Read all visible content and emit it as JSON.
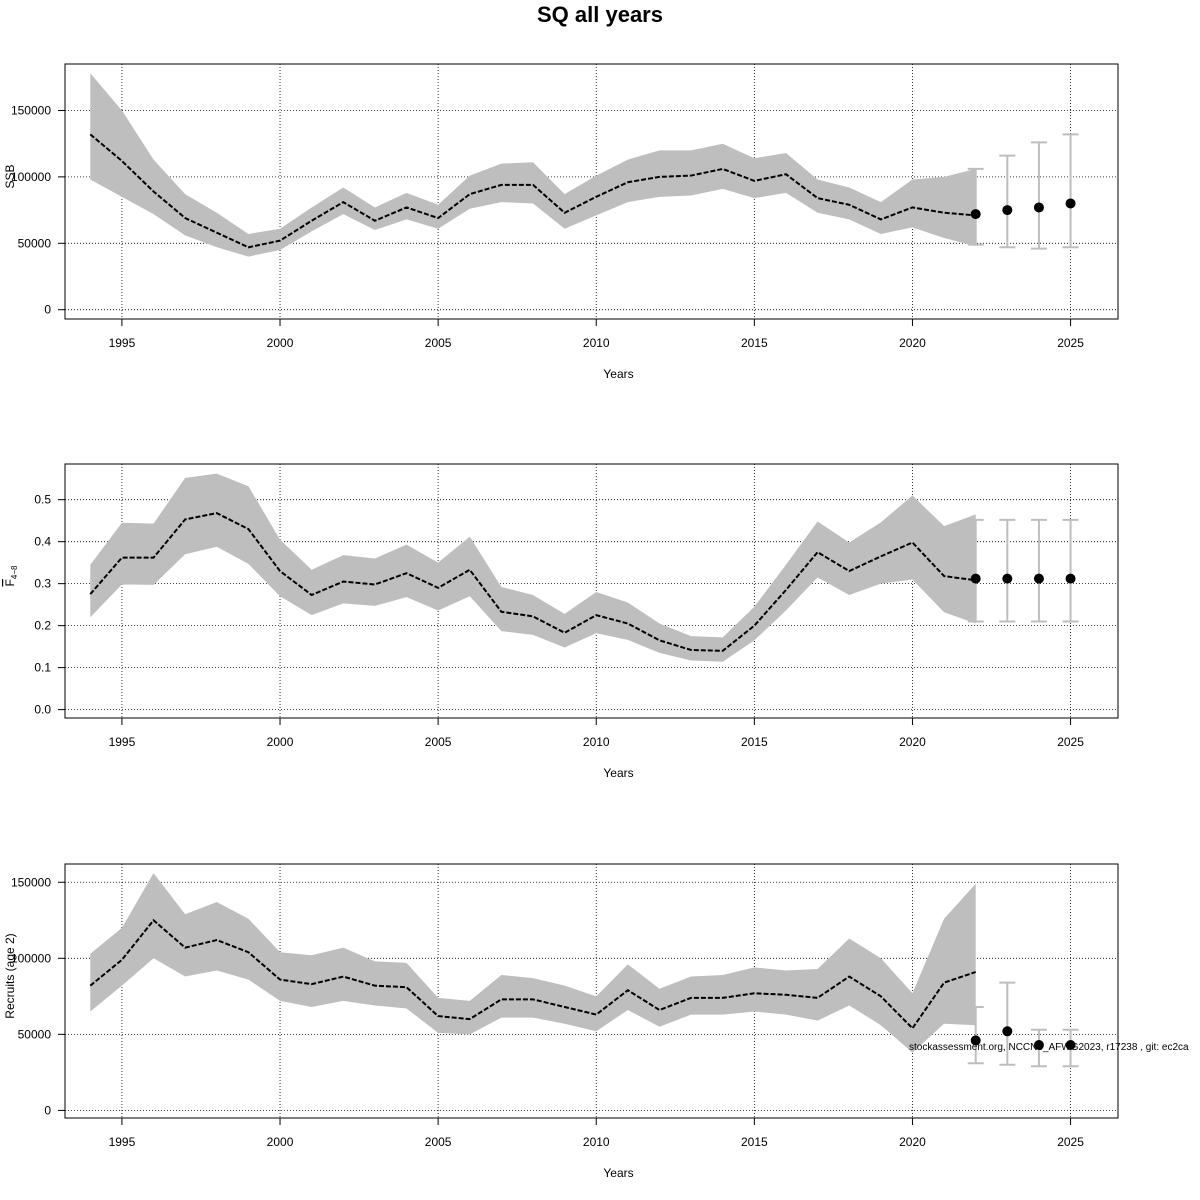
{
  "figure": {
    "title": "SQ all years",
    "footer": "stockassessment.org, NCCN8_AFWG2023, r17238 , git: ec2ca"
  },
  "colors": {
    "line": "#000000",
    "band": "#bebebe",
    "grid": "#000000",
    "errorbar": "#bebebe",
    "point": "#000000"
  },
  "chart_data": [
    {
      "type": "line",
      "name": "ssb",
      "title": "",
      "xlabel": "Years",
      "ylabel": "SSB",
      "xlim": [
        1993.2,
        2026.5
      ],
      "ylim": [
        -7000,
        185000
      ],
      "grid": true,
      "xticks": [
        1995,
        2000,
        2005,
        2010,
        2015,
        2020,
        2025
      ],
      "xtick_labels": [
        "1995",
        "2000",
        "2005",
        "2010",
        "2015",
        "2020",
        "2025"
      ],
      "yticks": [
        0,
        50000,
        100000,
        150000
      ],
      "ytick_labels": [
        "0",
        "50000",
        "100000",
        "150000"
      ],
      "x": [
        1994,
        1995,
        1996,
        1997,
        1998,
        1999,
        2000,
        2001,
        2002,
        2003,
        2004,
        2005,
        2006,
        2007,
        2008,
        2009,
        2010,
        2011,
        2012,
        2013,
        2014,
        2015,
        2016,
        2017,
        2018,
        2019,
        2020,
        2021,
        2022
      ],
      "estimate": [
        132000,
        112000,
        89000,
        69000,
        58000,
        47000,
        52000,
        67000,
        81000,
        67000,
        77000,
        69000,
        87000,
        94000,
        94000,
        73000,
        85000,
        96000,
        100000,
        101000,
        106000,
        97000,
        102000,
        84000,
        79000,
        68000,
        77000,
        73000,
        71000
      ],
      "upper": [
        178000,
        150000,
        113000,
        87000,
        73000,
        57000,
        61000,
        77000,
        92000,
        77000,
        88000,
        79000,
        101000,
        110000,
        111000,
        87000,
        101000,
        113000,
        120000,
        120000,
        125000,
        114000,
        118000,
        98000,
        92000,
        81000,
        98000,
        100000,
        106000
      ],
      "lower": [
        98000,
        85000,
        72000,
        56000,
        47000,
        40000,
        45000,
        59000,
        72000,
        60000,
        68000,
        61000,
        76000,
        81000,
        80000,
        61000,
        71000,
        81000,
        85000,
        86000,
        91000,
        84000,
        88000,
        73000,
        68000,
        57000,
        62000,
        54000,
        48000
      ],
      "forecast": [
        {
          "x": 2022,
          "median": 72000,
          "low": 49000,
          "high": 106000
        },
        {
          "x": 2023,
          "median": 75000,
          "low": 47000,
          "high": 116000
        },
        {
          "x": 2024,
          "median": 77000,
          "low": 46000,
          "high": 126000
        },
        {
          "x": 2025,
          "median": 80000,
          "low": 47000,
          "high": 132000
        }
      ]
    },
    {
      "type": "line",
      "name": "fbar",
      "title": "",
      "xlabel": "Years",
      "ylabel_main": "F",
      "ylabel_sub": "4−8",
      "xlim": [
        1993.2,
        2026.5
      ],
      "ylim": [
        -0.02,
        0.585
      ],
      "grid": true,
      "xticks": [
        1995,
        2000,
        2005,
        2010,
        2015,
        2020,
        2025
      ],
      "xtick_labels": [
        "1995",
        "2000",
        "2005",
        "2010",
        "2015",
        "2020",
        "2025"
      ],
      "yticks": [
        0.0,
        0.1,
        0.2,
        0.3,
        0.4,
        0.5
      ],
      "ytick_labels": [
        "0.0",
        "0.1",
        "0.2",
        "0.3",
        "0.4",
        "0.5"
      ],
      "x": [
        1994,
        1995,
        1996,
        1997,
        1998,
        1999,
        2000,
        2001,
        2002,
        2003,
        2004,
        2005,
        2006,
        2007,
        2008,
        2009,
        2010,
        2011,
        2012,
        2013,
        2014,
        2015,
        2016,
        2017,
        2018,
        2019,
        2020,
        2021,
        2022
      ],
      "estimate": [
        0.275,
        0.362,
        0.362,
        0.453,
        0.468,
        0.43,
        0.33,
        0.273,
        0.305,
        0.298,
        0.325,
        0.29,
        0.333,
        0.233,
        0.222,
        0.183,
        0.225,
        0.205,
        0.165,
        0.142,
        0.14,
        0.2,
        0.285,
        0.375,
        0.33,
        0.365,
        0.398,
        0.318,
        0.308
      ],
      "upper": [
        0.345,
        0.445,
        0.443,
        0.552,
        0.562,
        0.532,
        0.405,
        0.333,
        0.368,
        0.36,
        0.393,
        0.35,
        0.412,
        0.292,
        0.273,
        0.228,
        0.28,
        0.255,
        0.205,
        0.175,
        0.172,
        0.245,
        0.345,
        0.448,
        0.398,
        0.446,
        0.51,
        0.437,
        0.465
      ],
      "lower": [
        0.22,
        0.298,
        0.297,
        0.37,
        0.388,
        0.347,
        0.27,
        0.225,
        0.253,
        0.247,
        0.268,
        0.236,
        0.27,
        0.187,
        0.178,
        0.148,
        0.182,
        0.166,
        0.135,
        0.117,
        0.114,
        0.165,
        0.236,
        0.315,
        0.273,
        0.3,
        0.31,
        0.232,
        0.205
      ],
      "forecast": [
        {
          "x": 2022,
          "median": 0.312,
          "low": 0.21,
          "high": 0.452
        },
        {
          "x": 2023,
          "median": 0.312,
          "low": 0.21,
          "high": 0.452
        },
        {
          "x": 2024,
          "median": 0.312,
          "low": 0.21,
          "high": 0.452
        },
        {
          "x": 2025,
          "median": 0.312,
          "low": 0.21,
          "high": 0.452
        }
      ]
    },
    {
      "type": "line",
      "name": "recruits",
      "title": "",
      "xlabel": "Years",
      "ylabel": "Recruits (age 2)",
      "xlim": [
        1993.2,
        2026.5
      ],
      "ylim": [
        -5000,
        162000
      ],
      "grid": true,
      "xticks": [
        1995,
        2000,
        2005,
        2010,
        2015,
        2020,
        2025
      ],
      "xtick_labels": [
        "1995",
        "2000",
        "2005",
        "2010",
        "2015",
        "2020",
        "2025"
      ],
      "yticks": [
        0,
        50000,
        100000,
        150000
      ],
      "ytick_labels": [
        "0",
        "50000",
        "100000",
        "150000"
      ],
      "x": [
        1994,
        1995,
        1996,
        1997,
        1998,
        1999,
        2000,
        2001,
        2002,
        2003,
        2004,
        2005,
        2006,
        2007,
        2008,
        2009,
        2010,
        2011,
        2012,
        2013,
        2014,
        2015,
        2016,
        2017,
        2018,
        2019,
        2020,
        2021,
        2022
      ],
      "estimate": [
        82000,
        99000,
        125000,
        107000,
        112000,
        104000,
        86000,
        83000,
        88000,
        82000,
        81000,
        62000,
        60000,
        73000,
        73000,
        68000,
        63000,
        79000,
        66000,
        74000,
        74000,
        77000,
        76000,
        74000,
        88000,
        75000,
        54000,
        84000,
        91000
      ],
      "upper": [
        103000,
        120000,
        156000,
        129000,
        137000,
        126000,
        104000,
        102000,
        107000,
        98000,
        97000,
        74000,
        72000,
        89000,
        87000,
        82000,
        75000,
        96000,
        80000,
        88000,
        89000,
        94000,
        92000,
        93000,
        113000,
        100000,
        77000,
        126000,
        149000
      ],
      "lower": [
        65000,
        82000,
        100000,
        88000,
        92000,
        86000,
        72000,
        68000,
        72000,
        69000,
        67000,
        51000,
        50000,
        61000,
        61000,
        57000,
        52000,
        66000,
        55000,
        63000,
        63000,
        65000,
        63000,
        59000,
        69000,
        56000,
        38000,
        57000,
        56000
      ],
      "forecast": [
        {
          "x": 2022,
          "median": 46000,
          "low": 31000,
          "high": 68000
        },
        {
          "x": 2023,
          "median": 52000,
          "low": 30000,
          "high": 84000
        },
        {
          "x": 2024,
          "median": 43000,
          "low": 29000,
          "high": 53000
        },
        {
          "x": 2025,
          "median": 43000,
          "low": 29000,
          "high": 53000
        }
      ]
    }
  ]
}
